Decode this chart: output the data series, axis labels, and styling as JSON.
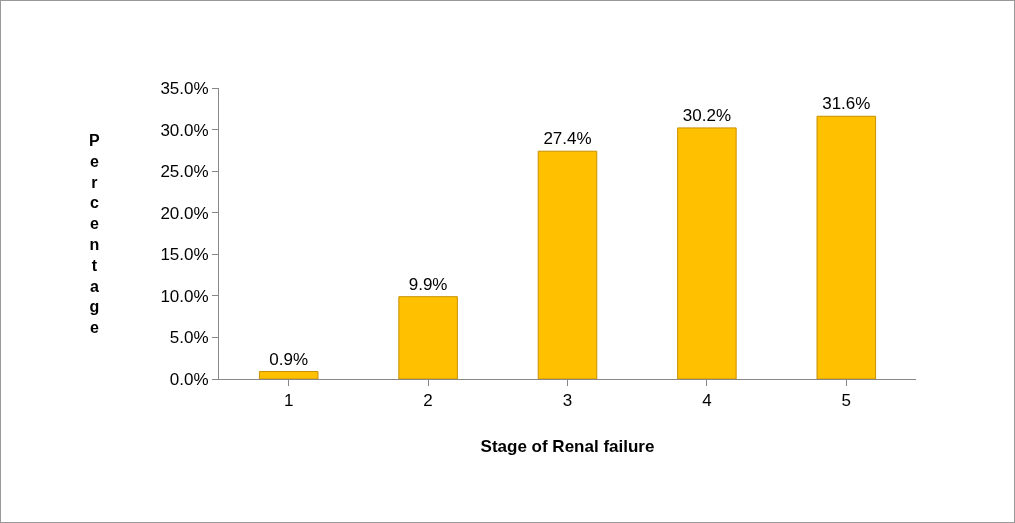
{
  "chart_data": {
    "type": "bar",
    "xlabel": "Stage of Renal failure",
    "ylabel": "Percentage",
    "categories": [
      "1",
      "2",
      "3",
      "4",
      "5"
    ],
    "values": [
      0.9,
      9.9,
      27.4,
      30.2,
      31.6
    ],
    "value_labels": [
      "0.9%",
      "9.9%",
      "27.4%",
      "30.2%",
      "31.6%"
    ],
    "color": "#ffc000",
    "ylim": [
      0,
      35
    ],
    "yticks": [
      {
        "value": 0,
        "label": "0.0%"
      },
      {
        "value": 5,
        "label": "5.0%"
      },
      {
        "value": 10,
        "label": "10.0%"
      },
      {
        "value": 15,
        "label": "15.0%"
      },
      {
        "value": 20,
        "label": "20.0%"
      },
      {
        "value": 25,
        "label": "25.0%"
      },
      {
        "value": 30,
        "label": "30.0%"
      },
      {
        "value": 35,
        "label": "35.0%"
      }
    ],
    "grid": false
  }
}
